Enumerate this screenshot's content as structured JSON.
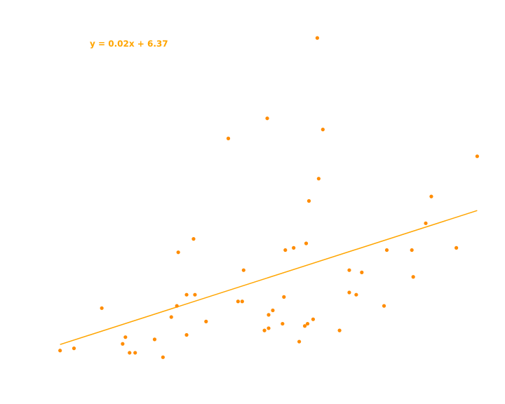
{
  "chart_data": {
    "type": "scatter",
    "annotation": "y = 0.02x + 6.37",
    "trendline": {
      "slope": 0.02,
      "intercept": 6.37,
      "color": "#ffa500"
    },
    "color": "#ff8c00",
    "x": [
      0,
      10,
      30,
      47,
      45,
      50,
      54,
      68,
      74,
      80,
      84,
      85,
      91,
      91,
      96,
      97,
      105,
      121,
      128,
      131,
      132,
      147,
      149,
      150,
      150,
      153,
      160,
      161,
      162,
      168,
      172,
      176,
      177,
      178,
      179,
      182,
      185,
      186,
      189,
      201,
      208,
      208,
      213,
      217,
      233,
      235,
      253,
      254,
      263,
      267,
      285,
      300
    ],
    "values": [
      6.1,
      6.2,
      8.0,
      6.7,
      6.4,
      6.0,
      6.0,
      6.6,
      5.8,
      7.6,
      8.1,
      10.5,
      8.6,
      6.8,
      11.1,
      8.6,
      7.4,
      15.6,
      8.3,
      8.3,
      9.7,
      7.0,
      16.5,
      7.7,
      7.1,
      7.9,
      7.3,
      8.5,
      10.6,
      10.7,
      6.5,
      7.2,
      10.9,
      7.3,
      12.8,
      7.5,
      20.1,
      13.8,
      16.0,
      7.0,
      9.7,
      8.7,
      8.6,
      9.6,
      8.1,
      10.6,
      10.6,
      9.4,
      11.8,
      13.0,
      10.7,
      14.8
    ],
    "xlim": [
      -20,
      320
    ],
    "ylim": [
      3.8,
      21.8
    ]
  }
}
